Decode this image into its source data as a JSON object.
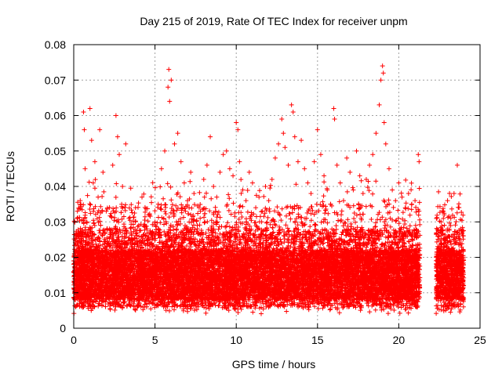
{
  "chart_data": {
    "type": "scatter",
    "title": "Day 215 of 2019, Rate Of TEC Index for receiver unpm",
    "xlabel": "GPS time / hours",
    "ylabel": "ROTI / TECUs",
    "xlim": [
      0,
      25
    ],
    "ylim": [
      0,
      0.08
    ],
    "xticks": [
      0,
      5,
      10,
      15,
      20,
      25
    ],
    "yticks": [
      0,
      0.01,
      0.02,
      0.03,
      0.04,
      0.05,
      0.06,
      0.07,
      0.08
    ],
    "xtick_labels": [
      "0",
      "5",
      "10",
      "15",
      "20",
      "25"
    ],
    "ytick_labels": [
      "0",
      "0.01",
      "0.02",
      "0.03",
      "0.04",
      "0.05",
      "0.06",
      "0.07",
      "0.08"
    ],
    "grid": true,
    "marker": "plus",
    "color": "#ff0000",
    "series": [
      {
        "points": [
          [
            0.1,
            0.013
          ],
          [
            0.2,
            0.018
          ],
          [
            0.3,
            0.027
          ],
          [
            0.4,
            0.036
          ],
          [
            0.5,
            0.022
          ],
          [
            0.6,
            0.061
          ],
          [
            0.65,
            0.056
          ],
          [
            0.7,
            0.045
          ],
          [
            0.8,
            0.03
          ],
          [
            0.9,
            0.019
          ],
          [
            1.0,
            0.062
          ],
          [
            1.1,
            0.053
          ],
          [
            1.2,
            0.041
          ],
          [
            1.3,
            0.047
          ],
          [
            1.5,
            0.037
          ],
          [
            1.6,
            0.056
          ],
          [
            1.8,
            0.044
          ],
          [
            2.0,
            0.033
          ],
          [
            2.2,
            0.028
          ],
          [
            2.4,
            0.046
          ],
          [
            2.6,
            0.06
          ],
          [
            2.7,
            0.054
          ],
          [
            2.8,
            0.049
          ],
          [
            3.0,
            0.04
          ],
          [
            3.2,
            0.052
          ],
          [
            3.4,
            0.031
          ],
          [
            3.6,
            0.025
          ],
          [
            3.8,
            0.034
          ],
          [
            4.0,
            0.029
          ],
          [
            4.2,
            0.037
          ],
          [
            4.4,
            0.026
          ],
          [
            4.6,
            0.032
          ],
          [
            4.8,
            0.024
          ],
          [
            5.0,
            0.03
          ],
          [
            5.2,
            0.035
          ],
          [
            5.4,
            0.045
          ],
          [
            5.6,
            0.05
          ],
          [
            5.8,
            0.068
          ],
          [
            5.85,
            0.073
          ],
          [
            5.9,
            0.064
          ],
          [
            6.0,
            0.07
          ],
          [
            6.2,
            0.052
          ],
          [
            6.4,
            0.055
          ],
          [
            6.6,
            0.047
          ],
          [
            6.8,
            0.041
          ],
          [
            7.0,
            0.036
          ],
          [
            7.2,
            0.044
          ],
          [
            7.4,
            0.038
          ],
          [
            7.6,
            0.029
          ],
          [
            7.8,
            0.033
          ],
          [
            8.0,
            0.042
          ],
          [
            8.2,
            0.046
          ],
          [
            8.4,
            0.054
          ],
          [
            8.6,
            0.04
          ],
          [
            8.8,
            0.037
          ],
          [
            9.0,
            0.044
          ],
          [
            9.2,
            0.049
          ],
          [
            9.4,
            0.05
          ],
          [
            9.6,
            0.045
          ],
          [
            9.8,
            0.043
          ],
          [
            10.0,
            0.058
          ],
          [
            10.1,
            0.056
          ],
          [
            10.2,
            0.047
          ],
          [
            10.4,
            0.039
          ],
          [
            10.6,
            0.036
          ],
          [
            10.8,
            0.044
          ],
          [
            11.0,
            0.041
          ],
          [
            11.2,
            0.034
          ],
          [
            11.4,
            0.037
          ],
          [
            11.6,
            0.033
          ],
          [
            11.8,
            0.04
          ],
          [
            12.0,
            0.036
          ],
          [
            12.2,
            0.042
          ],
          [
            12.4,
            0.048
          ],
          [
            12.6,
            0.052
          ],
          [
            12.8,
            0.059
          ],
          [
            12.9,
            0.055
          ],
          [
            13.0,
            0.051
          ],
          [
            13.2,
            0.046
          ],
          [
            13.4,
            0.063
          ],
          [
            13.5,
            0.061
          ],
          [
            13.6,
            0.054
          ],
          [
            13.8,
            0.047
          ],
          [
            14.0,
            0.053
          ],
          [
            14.2,
            0.045
          ],
          [
            14.4,
            0.041
          ],
          [
            14.6,
            0.038
          ],
          [
            14.8,
            0.047
          ],
          [
            15.0,
            0.056
          ],
          [
            15.2,
            0.049
          ],
          [
            15.4,
            0.043
          ],
          [
            15.6,
            0.039
          ],
          [
            15.8,
            0.035
          ],
          [
            16.0,
            0.062
          ],
          [
            16.05,
            0.059
          ],
          [
            16.2,
            0.046
          ],
          [
            16.4,
            0.041
          ],
          [
            16.6,
            0.036
          ],
          [
            16.8,
            0.048
          ],
          [
            17.0,
            0.044
          ],
          [
            17.2,
            0.039
          ],
          [
            17.4,
            0.05
          ],
          [
            17.6,
            0.043
          ],
          [
            17.8,
            0.038
          ],
          [
            18.0,
            0.042
          ],
          [
            18.2,
            0.046
          ],
          [
            18.4,
            0.049
          ],
          [
            18.6,
            0.055
          ],
          [
            18.8,
            0.063
          ],
          [
            18.9,
            0.07
          ],
          [
            19.0,
            0.074
          ],
          [
            19.05,
            0.072
          ],
          [
            19.1,
            0.058
          ],
          [
            19.2,
            0.052
          ],
          [
            19.4,
            0.045
          ],
          [
            19.6,
            0.039
          ],
          [
            19.8,
            0.036
          ],
          [
            20.0,
            0.041
          ],
          [
            20.2,
            0.037
          ],
          [
            20.4,
            0.034
          ],
          [
            20.6,
            0.038
          ],
          [
            20.8,
            0.035
          ],
          [
            21.0,
            0.036
          ],
          [
            21.2,
            0.049
          ],
          [
            21.25,
            0.047
          ],
          [
            22.4,
            0.026
          ],
          [
            22.6,
            0.03
          ],
          [
            22.8,
            0.024
          ],
          [
            23.0,
            0.036
          ],
          [
            23.2,
            0.031
          ],
          [
            23.4,
            0.038
          ],
          [
            23.6,
            0.046
          ],
          [
            23.8,
            0.028
          ],
          [
            23.9,
            0.022
          ]
        ]
      }
    ],
    "note_density": "Dense band of points between ~0.005 and ~0.035 TECU throughout 0–21.3 h and 22.3–24 h, gap between ~21.3 h and ~22.3 h"
  }
}
